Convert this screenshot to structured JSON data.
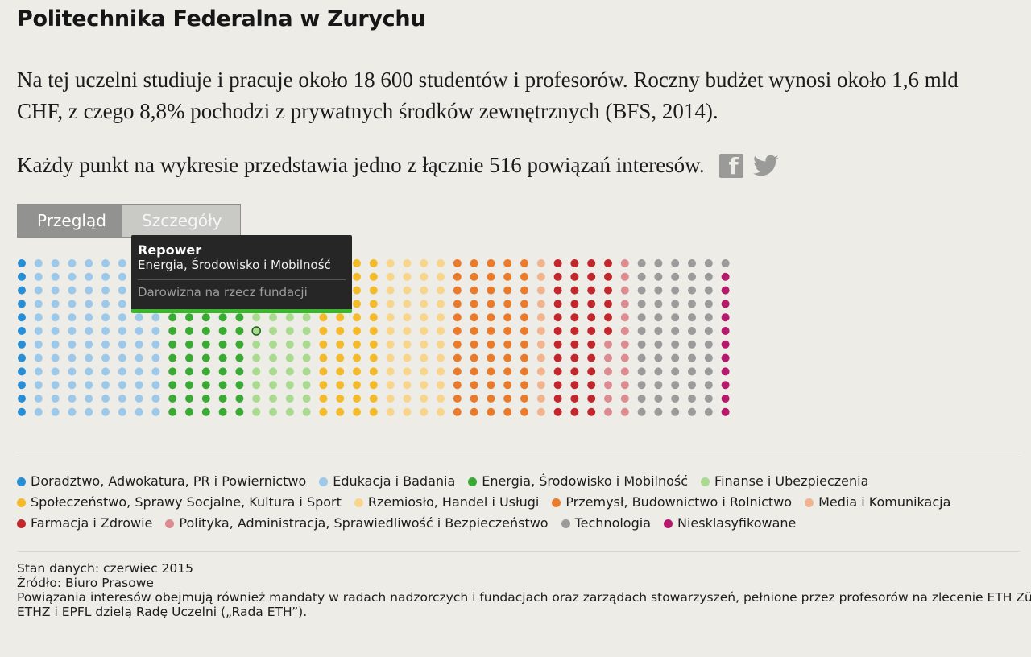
{
  "title": "Politechnika Federalna w Zurychu",
  "intro": "Na tej uczelni studiuje i pracuje około 18 600 studentów i profesorów. Roczny budżet wynosi około 1,6 mld CHF, z czego 8,8% pochodzi z prywatnych środków zewnętrznych (BFS, 2014).",
  "count_line": "Każdy punkt na wykresie przedstawia jedno z łącznie 516 powiązań interesów.",
  "share": {
    "facebook_icon": "facebook-icon",
    "twitter_icon": "twitter-icon"
  },
  "tabs": [
    {
      "label": "Przegląd",
      "active": true
    },
    {
      "label": "Szczegóły",
      "active": false
    }
  ],
  "tooltip": {
    "name": "Repower",
    "category": "Energia, Środowisko i Mobilność",
    "type": "Darowizna na rzecz fundacji"
  },
  "chart_data": {
    "type": "dot-matrix",
    "total": 516,
    "rows_per_column": 12,
    "categories": [
      {
        "name": "Doradztwo, Adwokatura, PR i Powiernictwo",
        "color": "#2a8ed4",
        "count": 12
      },
      {
        "name": "Edukacja i Badania",
        "color": "#9cc9ea",
        "count": 96
      },
      {
        "name": "Energia, Środowisko i Mobilność",
        "color": "#3aaa35",
        "count": 60
      },
      {
        "name": "Finanse i Ubezpieczenia",
        "color": "#a9da90",
        "count": 48
      },
      {
        "name": "Społeczeństwo, Sprawy Socjalne, Kultura i Sport",
        "color": "#f3bb2b",
        "count": 48
      },
      {
        "name": "Rzemiosło, Handel i Usługi",
        "color": "#f8d58a",
        "count": 48
      },
      {
        "name": "Przemysł, Budownictwo i Rolnictwo",
        "color": "#ea7b2a",
        "count": 60
      },
      {
        "name": "Media i Komunikacja",
        "color": "#f1b48e",
        "count": 12
      },
      {
        "name": "Farmacja i Zdrowie",
        "color": "#c1272d",
        "count": 42
      },
      {
        "name": "Polityka, Administracja, Sprawiedliwość i Bezpieczeństwo",
        "color": "#dc8c91",
        "count": 18
      },
      {
        "name": "Technologia",
        "color": "#9b9b9b",
        "count": 61
      },
      {
        "name": "Niesklasyfikowane",
        "color": "#b6196b",
        "count": 11
      }
    ],
    "highlighted_point": {
      "category": "Energia, Środowisko i Mobilność",
      "column": 14,
      "row": 5
    }
  },
  "footer": {
    "date": "Stan danych: czerwiec 2015",
    "source": "Źródło: Biuro Prasowe",
    "note1": "Powiązania interesów obejmują również mandaty w radach nadzorczych i fundacjach oraz zarządach stowarzyszeń, pełnione przez profesorów na zlecenie ETH Zürich.",
    "note2": "ETHZ i EPFL dzielą Radę Uczelni („Rada ETH”)."
  }
}
